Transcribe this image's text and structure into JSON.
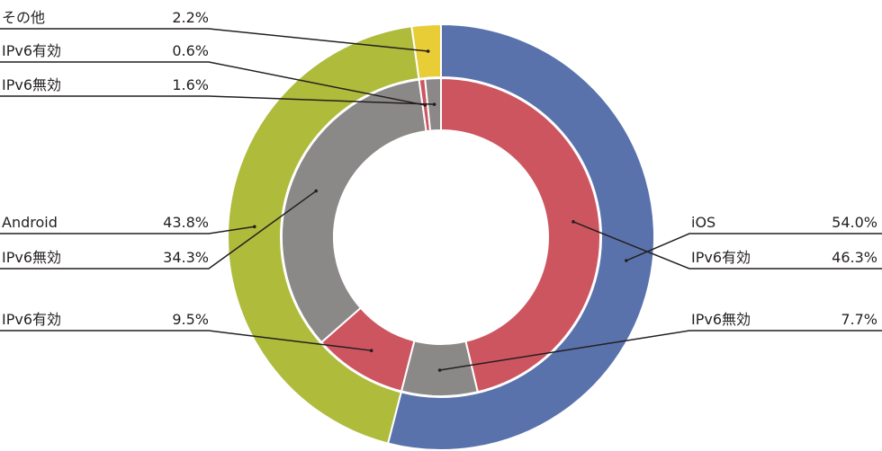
{
  "chart_data": {
    "type": "pie",
    "title": "",
    "outer_ring": [
      {
        "label": "iOS",
        "value": 54.0,
        "value_label": "54.0%",
        "color": "#5a72ac"
      },
      {
        "label": "Android",
        "value": 43.8,
        "value_label": "43.8%",
        "color": "#aebb3b"
      },
      {
        "label": "その他",
        "value": 2.2,
        "value_label": "2.2%",
        "color": "#e8cd37"
      }
    ],
    "inner_ring": [
      {
        "label": "IPv6有効",
        "value": 46.3,
        "value_label": "46.3%",
        "color": "#cd5560"
      },
      {
        "label": "IPv6無効",
        "value": 7.7,
        "value_label": "7.7%",
        "color": "#8b8888"
      },
      {
        "label": "IPv6有効",
        "value": 9.5,
        "value_label": "9.5%",
        "color": "#cd5560"
      },
      {
        "label": "IPv6無効",
        "value": 34.3,
        "value_label": "34.3%",
        "color": "#8b8888"
      },
      {
        "label": "IPv6有効",
        "value": 0.6,
        "value_label": "0.6%",
        "color": "#cd5560"
      },
      {
        "label": "IPv6無効",
        "value": 1.6,
        "value_label": "1.6%",
        "color": "#8b8888"
      }
    ]
  }
}
